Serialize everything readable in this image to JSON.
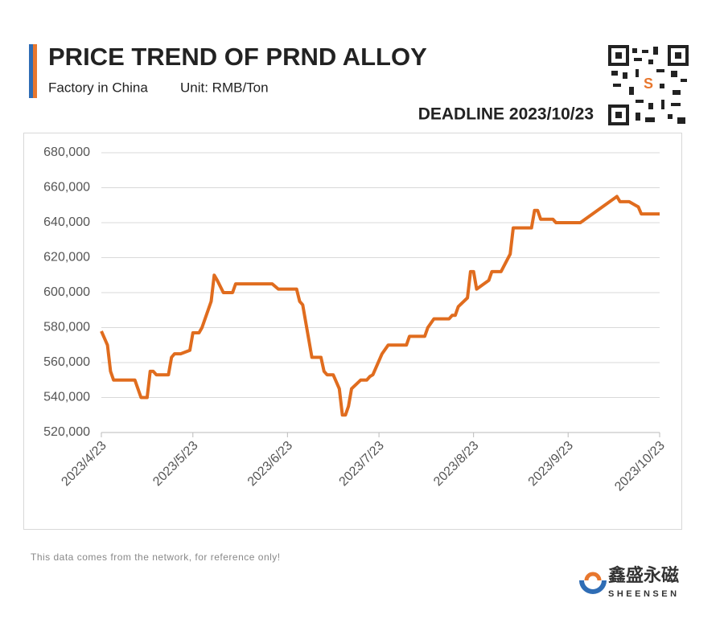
{
  "chart_data": {
    "type": "line",
    "title": "PRICE TREND OF PRND ALLOY",
    "subtitle": "Factory in China",
    "unit": "Unit: RMB/Ton",
    "deadline": "DEADLINE 2023/10/23",
    "note": "This data comes from the network, for reference only!",
    "brand": "鑫盛永磁",
    "brand_latin": "SHEENSEN",
    "x": [
      "2023/4/23",
      "2023/4/25",
      "2023/4/26",
      "2023/4/27",
      "2023/5/4",
      "2023/5/6",
      "2023/5/8",
      "2023/5/9",
      "2023/5/10",
      "2023/5/11",
      "2023/5/15",
      "2023/5/16",
      "2023/5/17",
      "2023/5/19",
      "2023/5/22",
      "2023/5/23",
      "2023/5/25",
      "2023/5/26",
      "2023/5/29",
      "2023/5/30",
      "2023/5/31",
      "2023/6/2",
      "2023/6/5",
      "2023/6/6",
      "2023/6/18",
      "2023/6/20",
      "2023/6/26",
      "2023/6/27",
      "2023/6/28",
      "2023/7/1",
      "2023/7/4",
      "2023/7/5",
      "2023/7/6",
      "2023/7/8",
      "2023/7/10",
      "2023/7/11",
      "2023/7/12",
      "2023/7/13",
      "2023/7/14",
      "2023/7/17",
      "2023/7/19",
      "2023/7/20",
      "2023/7/21",
      "2023/7/24",
      "2023/7/26",
      "2023/8/1",
      "2023/8/2",
      "2023/8/7",
      "2023/8/8",
      "2023/8/10",
      "2023/8/15",
      "2023/8/16",
      "2023/8/17",
      "2023/8/18",
      "2023/8/21",
      "2023/8/22",
      "2023/8/23",
      "2023/8/24",
      "2023/8/28",
      "2023/8/29",
      "2023/9/1",
      "2023/9/4",
      "2023/9/5",
      "2023/9/11",
      "2023/9/12",
      "2023/9/13",
      "2023/9/14",
      "2023/9/18",
      "2023/9/19",
      "2023/9/27",
      "2023/10/9",
      "2023/10/10",
      "2023/10/13",
      "2023/10/16",
      "2023/10/17",
      "2023/10/23"
    ],
    "series": [
      {
        "name": "PrNd alloy",
        "color": "#e06c1e",
        "values": [
          578000,
          570000,
          555000,
          550000,
          550000,
          540000,
          540000,
          555000,
          555000,
          553000,
          553000,
          563000,
          565000,
          565000,
          567000,
          577000,
          577000,
          580000,
          595000,
          610000,
          607000,
          600000,
          600000,
          605000,
          605000,
          602000,
          602000,
          595000,
          593000,
          563000,
          563000,
          555000,
          553000,
          553000,
          545000,
          530000,
          530000,
          535000,
          545000,
          550000,
          550000,
          552000,
          553000,
          565000,
          570000,
          570000,
          575000,
          575000,
          580000,
          585000,
          585000,
          587000,
          587000,
          592000,
          597000,
          612000,
          612000,
          602000,
          607000,
          612000,
          612000,
          622000,
          637000,
          637000,
          647000,
          647000,
          642000,
          642000,
          640000,
          640000,
          655000,
          652000,
          652000,
          649000,
          645000,
          645000
        ]
      }
    ],
    "xlim": [
      "2023/4/23",
      "2023/10/23"
    ],
    "xticks": [
      "2023/4/23",
      "2023/5/23",
      "2023/6/23",
      "2023/7/23",
      "2023/8/23",
      "2023/9/23",
      "2023/10/23"
    ],
    "ylim": [
      520000,
      680000
    ],
    "yticks": [
      {
        "value": 520000,
        "label": "520,000"
      },
      {
        "value": 540000,
        "label": "540,000"
      },
      {
        "value": 560000,
        "label": "560,000"
      },
      {
        "value": 580000,
        "label": "580,000"
      },
      {
        "value": 600000,
        "label": "600,000"
      },
      {
        "value": 620000,
        "label": "620,000"
      },
      {
        "value": 640000,
        "label": "640,000"
      },
      {
        "value": 660000,
        "label": "660,000"
      },
      {
        "value": 680000,
        "label": "680,000"
      }
    ],
    "grid": true
  }
}
